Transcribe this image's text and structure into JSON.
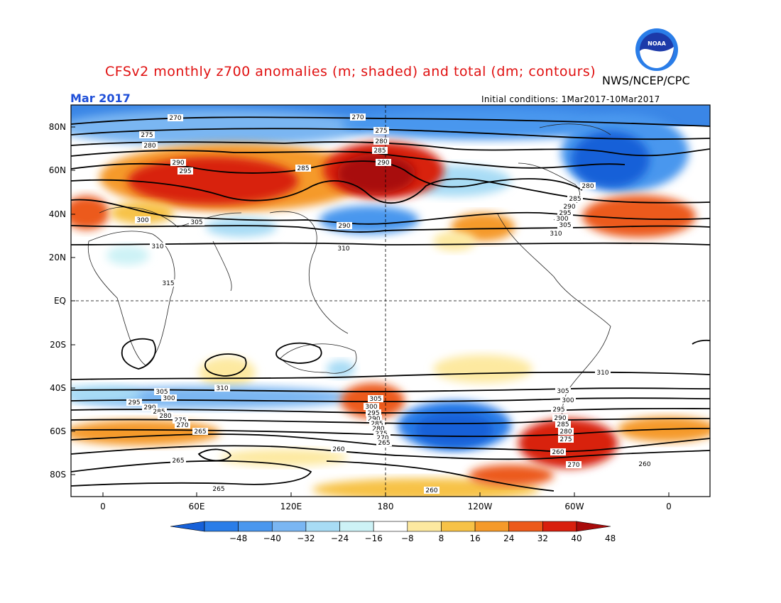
{
  "title": "CFSv2 monthly z700 anomalies (m; shaded) and total (dm; contours)",
  "agency": "NWS/NCEP/CPC",
  "logo_text": "NOAA",
  "month": "Mar 2017",
  "initial_conditions": "Initial conditions: 1Mar2017-10Mar2017",
  "lat_labels": [
    "80N",
    "60N",
    "40N",
    "20N",
    "EQ",
    "20S",
    "40S",
    "60S",
    "80S"
  ],
  "lon_labels": [
    "0",
    "60E",
    "120E",
    "180",
    "120W",
    "60W",
    "0"
  ],
  "colorbar": {
    "ticks": [
      "-48",
      "-40",
      "-32",
      "-24",
      "-16",
      "-8",
      "8",
      "16",
      "24",
      "32",
      "40",
      "48"
    ],
    "colors": [
      "#1660d8",
      "#2a7de8",
      "#4a97ee",
      "#7ab6f2",
      "#a8dcf5",
      "#cdf2f6",
      "#ffffff",
      "#fde9a0",
      "#f7c247",
      "#f59a2a",
      "#ec5a1a",
      "#d8200e",
      "#a80b0b"
    ]
  },
  "contour_labels": [
    {
      "text": "270"
    },
    {
      "text": "270"
    },
    {
      "text": "275"
    },
    {
      "text": "275"
    },
    {
      "text": "280"
    },
    {
      "text": "280"
    },
    {
      "text": "285"
    },
    {
      "text": "285"
    },
    {
      "text": "290"
    },
    {
      "text": "290"
    },
    {
      "text": "295"
    },
    {
      "text": "300"
    },
    {
      "text": "305"
    },
    {
      "text": "310"
    },
    {
      "text": "315"
    },
    {
      "text": "310"
    },
    {
      "text": "310"
    },
    {
      "text": "305"
    },
    {
      "text": "300"
    },
    {
      "text": "295"
    },
    {
      "text": "290"
    },
    {
      "text": "285"
    },
    {
      "text": "280"
    },
    {
      "text": "275"
    },
    {
      "text": "270"
    },
    {
      "text": "265"
    },
    {
      "text": "260"
    },
    {
      "text": "265"
    },
    {
      "text": "265"
    },
    {
      "text": "260"
    },
    {
      "text": "260"
    },
    {
      "text": "305"
    },
    {
      "text": "300"
    },
    {
      "text": "295"
    },
    {
      "text": "290"
    },
    {
      "text": "285"
    },
    {
      "text": "280"
    },
    {
      "text": "275"
    },
    {
      "text": "270"
    },
    {
      "text": "265"
    },
    {
      "text": "260"
    },
    {
      "text": "270"
    },
    {
      "text": "275"
    },
    {
      "text": "280"
    },
    {
      "text": "285"
    },
    {
      "text": "290"
    },
    {
      "text": "295"
    },
    {
      "text": "300"
    },
    {
      "text": "305"
    },
    {
      "text": "310"
    },
    {
      "text": "290"
    },
    {
      "text": "280"
    },
    {
      "text": "285"
    },
    {
      "text": "290"
    },
    {
      "text": "295"
    },
    {
      "text": "300"
    },
    {
      "text": "305"
    },
    {
      "text": "310"
    }
  ]
}
